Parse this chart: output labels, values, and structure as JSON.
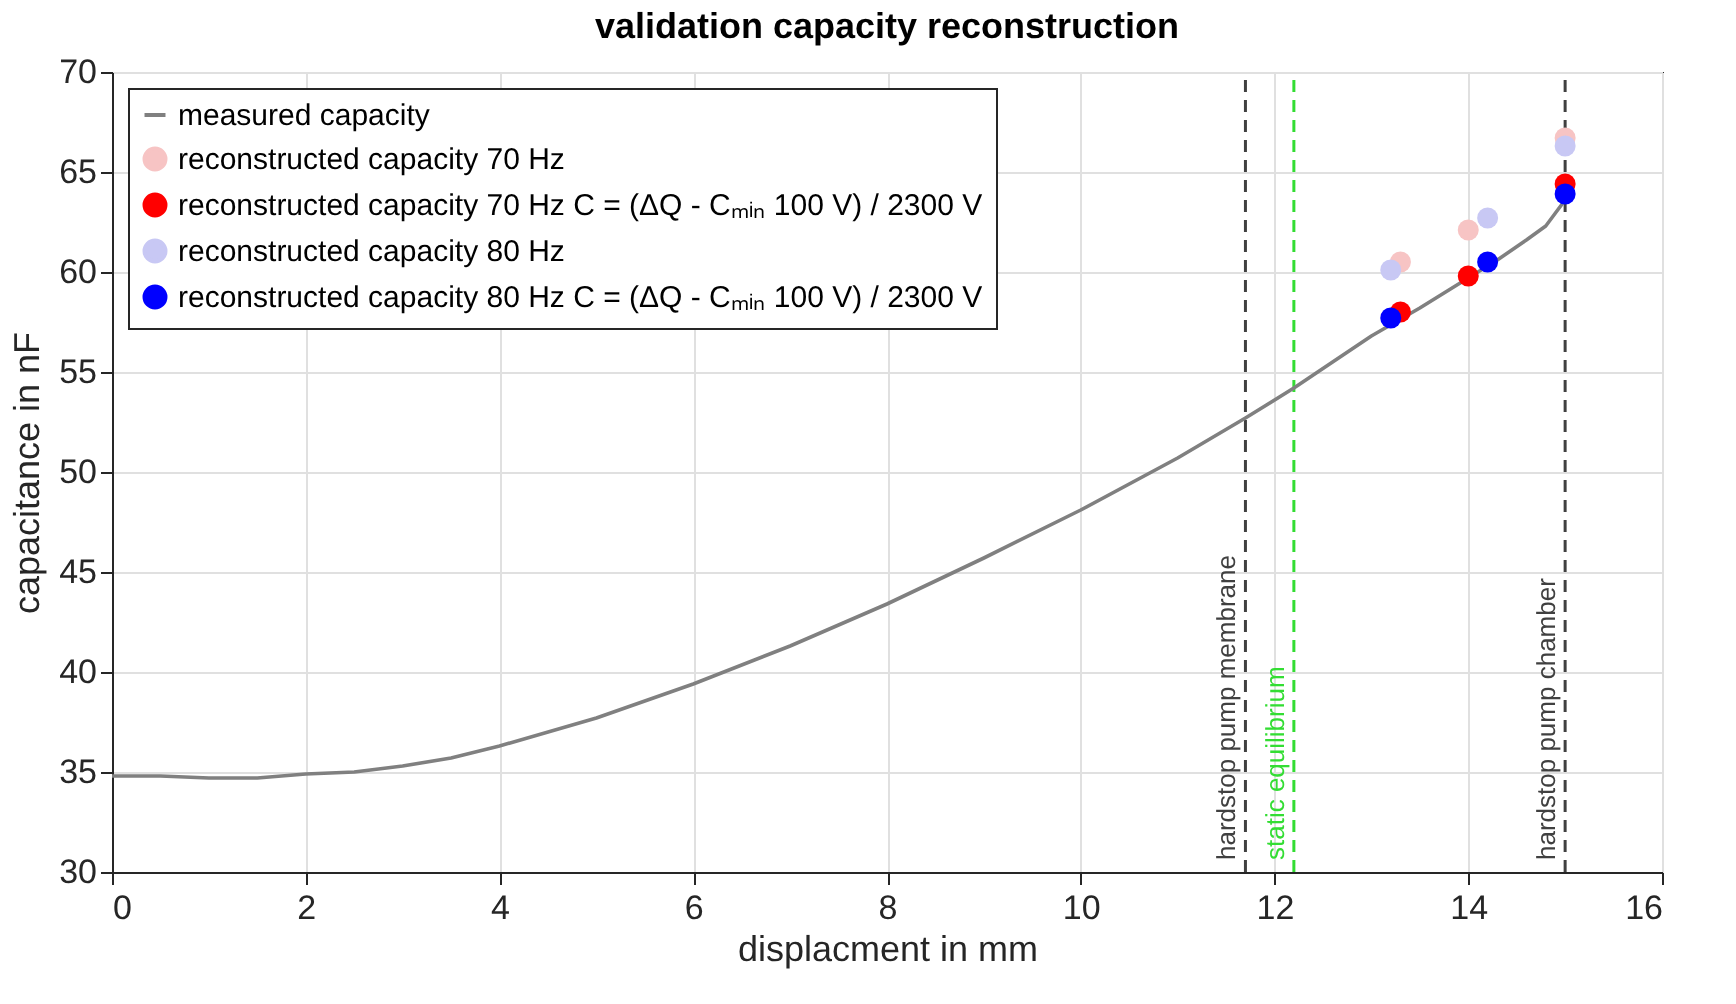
{
  "chart_data": {
    "type": "line",
    "title": "validation capacity reconstruction",
    "xlabel": "displacment in mm",
    "ylabel": "capacitance in nF",
    "xlim": [
      0,
      16
    ],
    "ylim": [
      30,
      70
    ],
    "xticks": [
      0,
      2,
      4,
      6,
      8,
      10,
      12,
      14,
      16
    ],
    "yticks": [
      30,
      35,
      40,
      45,
      50,
      55,
      60,
      65,
      70
    ],
    "grid": true,
    "legend": "top left",
    "series": [
      {
        "name": "measured capacity",
        "type": "line",
        "color": "#808080",
        "line_style": "solid",
        "x": [
          0,
          0.5,
          1,
          1.5,
          2,
          2.5,
          3,
          3.5,
          4,
          5,
          6,
          7,
          8,
          9,
          10,
          11,
          11.7,
          12.2,
          13,
          13.5,
          14,
          14.3,
          14.6,
          14.8,
          15
        ],
        "values": [
          34.8,
          34.8,
          34.7,
          34.7,
          34.9,
          35.0,
          35.3,
          35.7,
          36.3,
          37.7,
          39.4,
          41.3,
          43.4,
          45.7,
          48.1,
          50.7,
          52.7,
          54.2,
          56.8,
          58.2,
          59.7,
          60.6,
          61.6,
          62.3,
          63.6
        ]
      },
      {
        "name": "reconstructed capacity 70 Hz",
        "type": "scatter",
        "marker": "circle",
        "color": "#f7c4c4",
        "x": [
          13.3,
          14.0,
          15.0
        ],
        "values": [
          60.5,
          62.1,
          66.7
        ]
      },
      {
        "name": "reconstructed capacity 70 Hz C = (ΔQ - Cₘᵢₙ 100 V) / 2300 V",
        "type": "scatter",
        "marker": "circle",
        "color": "#ff0000",
        "x": [
          13.3,
          14.0,
          15.0
        ],
        "values": [
          58.0,
          59.8,
          64.4
        ]
      },
      {
        "name": "reconstructed capacity 80 Hz",
        "type": "scatter",
        "marker": "circle",
        "color": "#c8c8f4",
        "x": [
          13.2,
          14.2,
          15.0
        ],
        "values": [
          60.1,
          62.7,
          66.3
        ]
      },
      {
        "name": "reconstructed capacity 80 Hz C = (ΔQ - Cₘᵢₙ 100 V) / 2300 V",
        "type": "scatter",
        "marker": "circle",
        "color": "#0000ff",
        "x": [
          13.2,
          14.2,
          15.0
        ],
        "values": [
          57.7,
          60.5,
          63.9
        ]
      }
    ],
    "ref_lines": [
      {
        "axis": "x",
        "value": 11.7,
        "label": "hardstop pump membrane",
        "color": "#404040",
        "line_style": "dashed"
      },
      {
        "axis": "x",
        "value": 12.2,
        "label": "static equilibrium",
        "color": "#33dd33",
        "line_style": "dashed"
      },
      {
        "axis": "x",
        "value": 15,
        "label": "hardstop pump chamber",
        "color": "#404040",
        "line_style": "dashed"
      }
    ]
  }
}
